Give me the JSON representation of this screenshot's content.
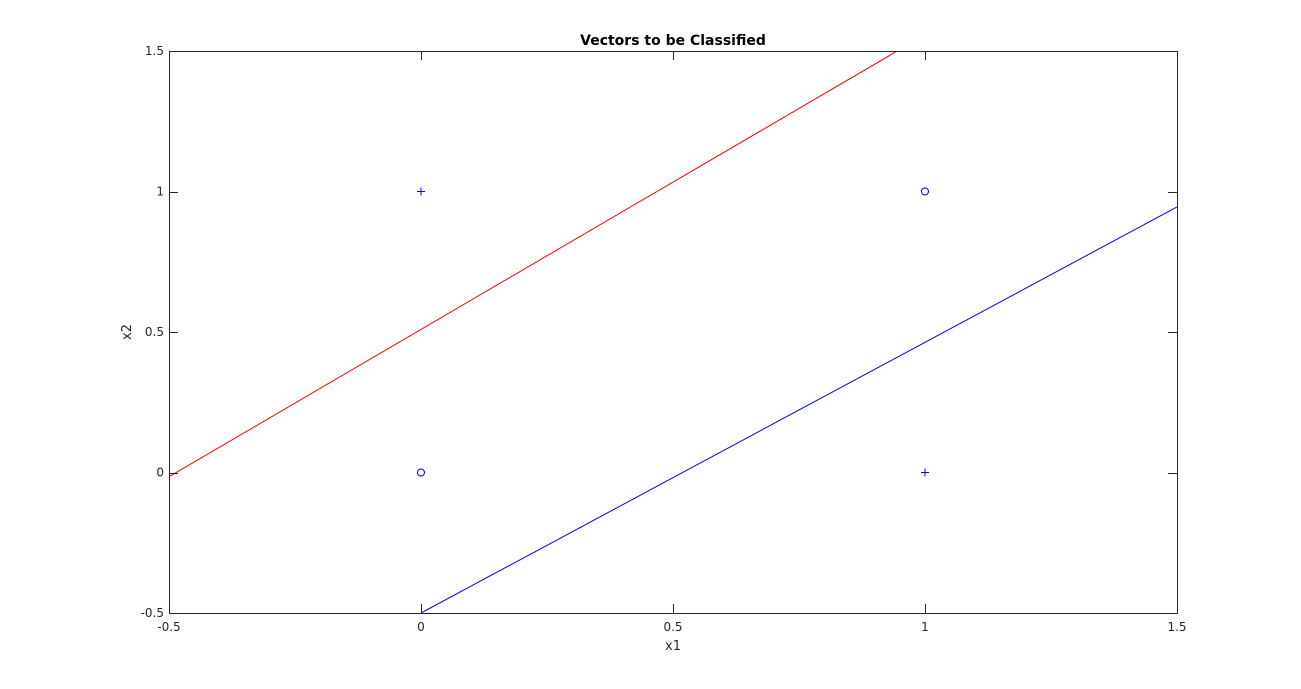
{
  "chart_data": {
    "type": "scatter",
    "title": "Vectors to be Classified",
    "xlabel": "x1",
    "ylabel": "x2",
    "xlim": [
      -0.5,
      1.5
    ],
    "ylim": [
      -0.5,
      1.5
    ],
    "xticks": [
      -0.5,
      0,
      0.5,
      1,
      1.5
    ],
    "yticks": [
      -0.5,
      0,
      0.5,
      1,
      1.5
    ],
    "xtick_labels": [
      "-0.5",
      "0",
      "0.5",
      "1",
      "1.5"
    ],
    "ytick_labels": [
      "-0.5",
      "0",
      "0.5",
      "1",
      "1.5"
    ],
    "grid": false,
    "points": [
      {
        "x": 0,
        "y": 0,
        "marker": "circle"
      },
      {
        "x": 0,
        "y": 1,
        "marker": "plus"
      },
      {
        "x": 1,
        "y": 0,
        "marker": "plus"
      },
      {
        "x": 1,
        "y": 1,
        "marker": "circle"
      }
    ],
    "point_color": "#0000ff",
    "lines": [
      {
        "color": "#ff0000",
        "points": [
          [
            -0.5,
            -0.015
          ],
          [
            0.945,
            1.5
          ]
        ]
      },
      {
        "color": "#0000ff",
        "points": [
          [
            0,
            -0.5
          ],
          [
            1.5,
            0.945
          ]
        ]
      }
    ],
    "axis_color": "#262626"
  }
}
